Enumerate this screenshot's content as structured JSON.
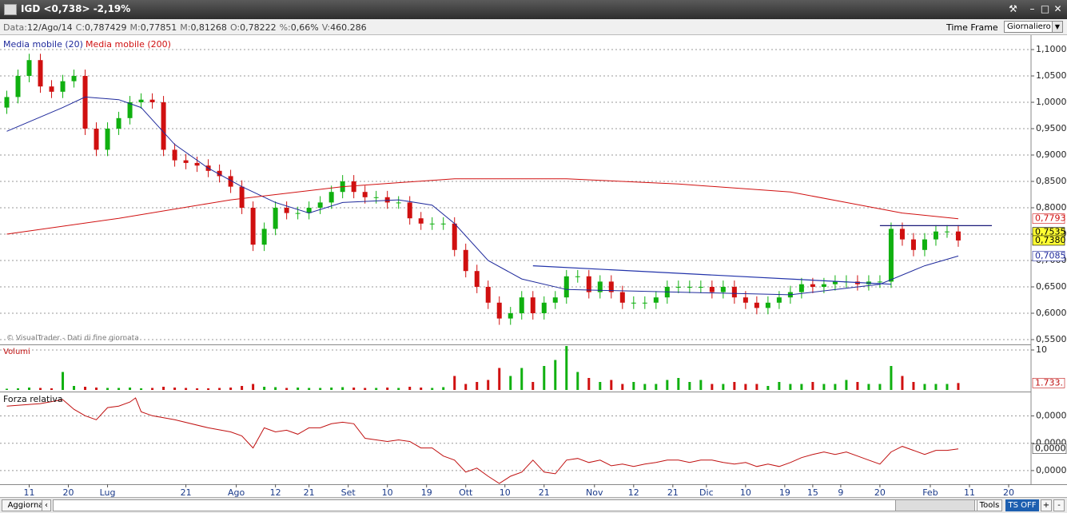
{
  "window": {
    "title": "IGD <0,738> -2,19%"
  },
  "infobar": {
    "items": [
      {
        "label": "Data:",
        "value": "12/Ago/14"
      },
      {
        "label": "C:",
        "value": "0,787429"
      },
      {
        "label": "M:",
        "value": "0,77851"
      },
      {
        "label": "M:",
        "value": "0,81268"
      },
      {
        "label": "O:",
        "value": "0,78222"
      },
      {
        "label": "%:",
        "value": "0,66%"
      },
      {
        "label": "V:",
        "value": "460.286"
      }
    ],
    "timeframe_label": "Time Frame",
    "timeframe": "Giornaliero"
  },
  "footer": {
    "refresh": "Aggiorna",
    "tools": "Tools",
    "ts": "TS OFF",
    "plus": "+",
    "minus": "-"
  },
  "chart_data": [
    {
      "type": "candlestick",
      "annotation": "© VisualTrader - Dati di fine giornata",
      "up_color": "#10b010",
      "down_color": "#d01010",
      "grid": true,
      "xlim": [
        -0.5,
        183
      ],
      "ylim": [
        0.5424,
        1.1258
      ],
      "yticks": [
        {
          "value": 1.1,
          "label": "1,1000"
        },
        {
          "value": 1.05,
          "label": "1,0500"
        },
        {
          "value": 1.0,
          "label": "1,0000"
        },
        {
          "value": 0.95,
          "label": "0,9500"
        },
        {
          "value": 0.9,
          "label": "0,9000"
        },
        {
          "value": 0.85,
          "label": "0,8500"
        },
        {
          "value": 0.8,
          "label": "0,8000"
        },
        {
          "value": 0.75,
          "label": "0,7500"
        },
        {
          "value": 0.7,
          "label": "0,7000"
        },
        {
          "value": 0.65,
          "label": "0,6500"
        },
        {
          "value": 0.6,
          "label": "0,6000"
        },
        {
          "value": 0.55,
          "label": "0,5500"
        }
      ],
      "xticks": [
        {
          "value": 4,
          "label": "11"
        },
        {
          "value": 11,
          "label": "20"
        },
        {
          "value": 18,
          "label": "Lug"
        },
        {
          "value": 32,
          "label": "21"
        },
        {
          "value": 41,
          "label": "Ago"
        },
        {
          "value": 48,
          "label": "12"
        },
        {
          "value": 54,
          "label": "21"
        },
        {
          "value": 61,
          "label": "Set"
        },
        {
          "value": 68,
          "label": "10"
        },
        {
          "value": 75,
          "label": "19"
        },
        {
          "value": 82,
          "label": "Ott"
        },
        {
          "value": 89,
          "label": "10"
        },
        {
          "value": 96,
          "label": "21"
        },
        {
          "value": 105,
          "label": "Nov"
        },
        {
          "value": 112,
          "label": "12"
        },
        {
          "value": 119,
          "label": "21"
        },
        {
          "value": 125,
          "label": "Dic"
        },
        {
          "value": 132,
          "label": "10"
        },
        {
          "value": 139,
          "label": "19"
        },
        {
          "value": 144,
          "label": "15"
        },
        {
          "value": 149,
          "label": "9"
        },
        {
          "value": 156,
          "label": "20"
        },
        {
          "value": 165,
          "label": "Feb"
        },
        {
          "value": 172,
          "label": "11"
        },
        {
          "value": 179,
          "label": "20"
        }
      ],
      "x": [
        0,
        2,
        4,
        6,
        8,
        10,
        12,
        14,
        16,
        18,
        20,
        22,
        24,
        26,
        28,
        30,
        32,
        34,
        36,
        38,
        40,
        42,
        44,
        46,
        48,
        50,
        52,
        54,
        56,
        58,
        60,
        62,
        64,
        66,
        68,
        70,
        72,
        74,
        76,
        78,
        80,
        82,
        84,
        86,
        88,
        90,
        92,
        94,
        96,
        98,
        100,
        102,
        104,
        106,
        108,
        110,
        112,
        114,
        116,
        118,
        120,
        122,
        124,
        126,
        128,
        130,
        132,
        134,
        136,
        138,
        140,
        142,
        144,
        146,
        148,
        150,
        152,
        154,
        156,
        158,
        160,
        162,
        164,
        166,
        168,
        170
      ],
      "open": [
        0.99,
        1.01,
        1.05,
        1.08,
        1.03,
        1.02,
        1.04,
        1.05,
        0.95,
        0.91,
        0.95,
        0.97,
        1.0,
        1.005,
        1.0,
        0.91,
        0.89,
        0.885,
        0.88,
        0.87,
        0.86,
        0.84,
        0.8,
        0.73,
        0.76,
        0.8,
        0.79,
        0.79,
        0.8,
        0.81,
        0.83,
        0.85,
        0.83,
        0.82,
        0.82,
        0.81,
        0.81,
        0.78,
        0.77,
        0.77,
        0.77,
        0.72,
        0.68,
        0.65,
        0.62,
        0.59,
        0.6,
        0.63,
        0.6,
        0.62,
        0.63,
        0.67,
        0.67,
        0.64,
        0.66,
        0.64,
        0.62,
        0.62,
        0.62,
        0.63,
        0.65,
        0.65,
        0.65,
        0.65,
        0.64,
        0.65,
        0.63,
        0.62,
        0.61,
        0.62,
        0.63,
        0.64,
        0.655,
        0.65,
        0.655,
        0.66,
        0.66,
        0.655,
        0.66,
        0.66,
        0.76,
        0.74,
        0.72,
        0.74,
        0.755,
        0.755
      ],
      "high": [
        1.022,
        1.062,
        1.092,
        1.092,
        1.042,
        1.052,
        1.062,
        1.062,
        0.962,
        0.962,
        0.982,
        1.012,
        1.017,
        1.017,
        1.012,
        0.922,
        0.902,
        0.897,
        0.892,
        0.882,
        0.872,
        0.852,
        0.812,
        0.772,
        0.812,
        0.812,
        0.802,
        0.812,
        0.822,
        0.842,
        0.862,
        0.862,
        0.842,
        0.832,
        0.832,
        0.822,
        0.822,
        0.792,
        0.782,
        0.782,
        0.782,
        0.732,
        0.692,
        0.662,
        0.632,
        0.612,
        0.642,
        0.642,
        0.632,
        0.642,
        0.682,
        0.682,
        0.682,
        0.672,
        0.672,
        0.652,
        0.632,
        0.632,
        0.642,
        0.662,
        0.662,
        0.662,
        0.662,
        0.662,
        0.662,
        0.662,
        0.642,
        0.632,
        0.632,
        0.642,
        0.652,
        0.667,
        0.667,
        0.667,
        0.672,
        0.672,
        0.672,
        0.672,
        0.672,
        0.772,
        0.772,
        0.752,
        0.752,
        0.767,
        0.767,
        0.767
      ],
      "low": [
        0.978,
        0.998,
        1.038,
        1.018,
        1.008,
        1.008,
        1.028,
        0.938,
        0.898,
        0.898,
        0.938,
        0.958,
        0.988,
        0.988,
        0.898,
        0.878,
        0.873,
        0.868,
        0.858,
        0.848,
        0.828,
        0.788,
        0.718,
        0.718,
        0.748,
        0.778,
        0.778,
        0.778,
        0.788,
        0.798,
        0.818,
        0.818,
        0.808,
        0.808,
        0.798,
        0.798,
        0.768,
        0.758,
        0.758,
        0.758,
        0.708,
        0.668,
        0.638,
        0.608,
        0.578,
        0.578,
        0.588,
        0.588,
        0.588,
        0.608,
        0.618,
        0.658,
        0.628,
        0.628,
        0.628,
        0.608,
        0.608,
        0.608,
        0.608,
        0.618,
        0.638,
        0.638,
        0.638,
        0.628,
        0.628,
        0.618,
        0.608,
        0.598,
        0.598,
        0.608,
        0.618,
        0.628,
        0.638,
        0.638,
        0.643,
        0.648,
        0.643,
        0.643,
        0.648,
        0.648,
        0.728,
        0.708,
        0.708,
        0.728,
        0.743,
        0.726
      ],
      "close": [
        1.01,
        1.05,
        1.08,
        1.03,
        1.02,
        1.04,
        1.05,
        0.95,
        0.91,
        0.95,
        0.97,
        1.0,
        1.005,
        1.0,
        0.91,
        0.89,
        0.885,
        0.88,
        0.87,
        0.86,
        0.84,
        0.8,
        0.73,
        0.76,
        0.8,
        0.79,
        0.79,
        0.8,
        0.81,
        0.83,
        0.85,
        0.83,
        0.82,
        0.82,
        0.81,
        0.81,
        0.78,
        0.77,
        0.77,
        0.77,
        0.72,
        0.68,
        0.65,
        0.62,
        0.59,
        0.6,
        0.63,
        0.6,
        0.62,
        0.63,
        0.67,
        0.67,
        0.64,
        0.66,
        0.64,
        0.62,
        0.62,
        0.62,
        0.63,
        0.65,
        0.65,
        0.65,
        0.65,
        0.64,
        0.65,
        0.63,
        0.62,
        0.61,
        0.62,
        0.63,
        0.64,
        0.655,
        0.65,
        0.655,
        0.66,
        0.66,
        0.655,
        0.66,
        0.66,
        0.76,
        0.74,
        0.72,
        0.74,
        0.755,
        0.755,
        0.738
      ],
      "series": [
        {
          "name": "Media mobile (20)",
          "color": "#1f2a9c",
          "x": [
            0,
            10,
            14,
            20,
            24,
            30,
            36,
            42,
            48,
            54,
            60,
            70,
            76,
            80,
            86,
            92,
            100,
            120,
            140,
            156,
            164,
            170
          ],
          "values": [
            0.945,
            0.99,
            1.01,
            1.005,
            0.99,
            0.92,
            0.875,
            0.84,
            0.81,
            0.79,
            0.81,
            0.815,
            0.805,
            0.77,
            0.7,
            0.665,
            0.645,
            0.64,
            0.635,
            0.655,
            0.69,
            0.7085
          ]
        },
        {
          "name": "Media mobile (200)",
          "color": "#d01010",
          "x": [
            0,
            20,
            40,
            60,
            80,
            100,
            120,
            140,
            160,
            170
          ],
          "values": [
            0.75,
            0.78,
            0.815,
            0.84,
            0.855,
            0.855,
            0.845,
            0.83,
            0.79,
            0.7793
          ]
        }
      ],
      "trendlines": [
        {
          "color": "#2233aa",
          "x": [
            94,
            158
          ],
          "values": [
            0.69,
            0.655
          ]
        },
        {
          "color": "#1a1a7a",
          "x": [
            156,
            176
          ],
          "values": [
            0.766,
            0.766
          ]
        }
      ],
      "price_labels": [
        {
          "value": 0.7793,
          "label": "0,7793",
          "color": "#d01010",
          "background": "#ffffff"
        },
        {
          "value": 0.7535,
          "label": "0,7535",
          "color": "#000000",
          "background": "#ffff33"
        },
        {
          "value": 0.738,
          "label": "0,7380",
          "color": "#000000",
          "background": "#ffff33"
        },
        {
          "value": 0.7085,
          "label": "0,7085",
          "color": "#1f2a9c",
          "background": "#ffffff"
        }
      ]
    },
    {
      "type": "bar",
      "title": "Volumi",
      "ylim": [
        0,
        11
      ],
      "yticks": [
        10
      ],
      "grid": true,
      "values": [
        0.3,
        0.4,
        0.6,
        0.5,
        0.4,
        4.5,
        1.0,
        0.8,
        0.6,
        0.5,
        0.5,
        0.6,
        0.4,
        0.5,
        0.8,
        0.6,
        0.5,
        0.4,
        0.4,
        0.5,
        0.6,
        1.0,
        1.5,
        0.8,
        0.7,
        0.5,
        0.6,
        0.5,
        0.5,
        0.6,
        0.7,
        0.6,
        0.5,
        0.5,
        0.6,
        0.5,
        0.8,
        0.6,
        0.5,
        0.7,
        3.5,
        1.5,
        2.0,
        2.5,
        5.5,
        3.5,
        5.5,
        2.0,
        6.0,
        7.5,
        11.0,
        4.5,
        3.0,
        2.0,
        2.5,
        1.5,
        2.0,
        1.5,
        1.5,
        2.5,
        3.0,
        2.0,
        2.5,
        1.5,
        1.5,
        2.0,
        1.5,
        1.5,
        1.0,
        2.0,
        1.5,
        1.5,
        2.0,
        1.5,
        1.5,
        2.5,
        2.0,
        1.5,
        1.5,
        6.0,
        3.5,
        2.0,
        1.5,
        1.5,
        1.5,
        1.733
      ],
      "last_label": {
        "value": 1.733,
        "label": "1.733."
      }
    },
    {
      "type": "line",
      "title": "Forza relativa",
      "ylim": [
        -4.5e-05,
        5.5e-05
      ],
      "grid": true,
      "yticks": [
        {
          "value": 3e-05,
          "label": "0,0000"
        },
        {
          "value": 0,
          "label": "0,0000"
        },
        {
          "value": -3e-05,
          "label": "0,0000"
        }
      ],
      "series": [
        {
          "color": "#c01010",
          "x": [
            0,
            6,
            10,
            12,
            14,
            16,
            18,
            20,
            22,
            23,
            24,
            26,
            30,
            36,
            40,
            42,
            44,
            46,
            48,
            50,
            52,
            54,
            56,
            58,
            60,
            62,
            64,
            66,
            68,
            70,
            72,
            74,
            76,
            78,
            80,
            82,
            84,
            86,
            88,
            90,
            92,
            94,
            96,
            98,
            100,
            102,
            104,
            106,
            108,
            110,
            112,
            114,
            116,
            118,
            120,
            122,
            124,
            126,
            128,
            130,
            132,
            134,
            136,
            138,
            140,
            142,
            144,
            146,
            148,
            150,
            152,
            154,
            156,
            158,
            160,
            162,
            164,
            166,
            168,
            170
          ],
          "values": [
            4.08e-05,
            4.35e-05,
            4.79e-05,
            3.73e-05,
            3.02e-05,
            2.58e-05,
            3.91e-05,
            4.08e-05,
            4.53e-05,
            4.97e-05,
            3.46e-05,
            3.02e-05,
            2.58e-05,
            1.69e-05,
            1.25e-05,
            8.1e-06,
            -5.2e-06,
            1.69e-05,
            1.25e-05,
            1.43e-05,
            9.9e-06,
            1.69e-05,
            1.69e-05,
            2.14e-05,
            2.31e-05,
            2.14e-05,
            5.4e-06,
            3.7e-06,
            1.9e-06,
            3.7e-06,
            1.9e-06,
            -5.2e-06,
            -5.2e-06,
            -1.4e-05,
            -1.85e-05,
            -3.17e-05,
            -2.73e-05,
            -3.62e-05,
            -4.41e-05,
            -3.62e-05,
            -3.17e-05,
            -1.85e-05,
            -3.17e-05,
            -3.35e-05,
            -1.85e-05,
            -1.67e-05,
            -2.11e-05,
            -1.85e-05,
            -2.47e-05,
            -2.29e-05,
            -2.55e-05,
            -2.29e-05,
            -2.11e-05,
            -1.85e-05,
            -1.85e-05,
            -2.11e-05,
            -1.85e-05,
            -1.85e-05,
            -2.11e-05,
            -2.29e-05,
            -2.11e-05,
            -2.55e-05,
            -2.29e-05,
            -2.55e-05,
            -2.11e-05,
            -1.58e-05,
            -1.23e-05,
            -9.6e-06,
            -1.23e-05,
            -9.6e-06,
            -1.4e-05,
            -1.85e-05,
            -2.29e-05,
            -9.6e-06,
            -3.4e-06,
            -7.8e-06,
            -1.23e-05,
            -7.8e-06,
            -7.8e-06,
            -6.1e-06
          ]
        }
      ],
      "last_label": {
        "value": -6.1e-06,
        "label": "0,0000"
      }
    }
  ]
}
